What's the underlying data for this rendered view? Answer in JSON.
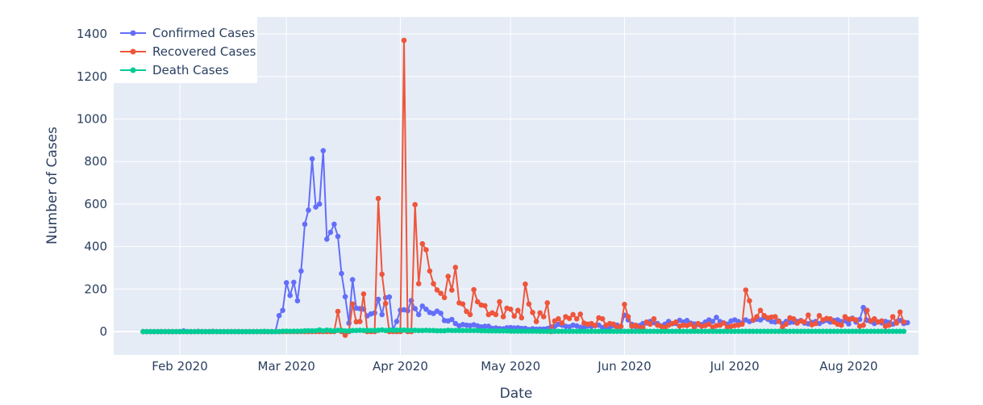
{
  "chart_data": {
    "type": "line",
    "xlabel": "Date",
    "ylabel": "Number of Cases",
    "x_start": "2020-01-22",
    "x_end": "2020-08-05",
    "xlim": [
      "2020-01-14",
      "2020-08-20"
    ],
    "ylim": [
      -110,
      1480
    ],
    "yticks": [
      0,
      200,
      400,
      600,
      800,
      1000,
      1200,
      1400
    ],
    "xticks": [
      {
        "date": "2020-02-01",
        "label": "Feb 2020"
      },
      {
        "date": "2020-03-01",
        "label": "Mar 2020"
      },
      {
        "date": "2020-04-01",
        "label": "Apr 2020"
      },
      {
        "date": "2020-05-01",
        "label": "May 2020"
      },
      {
        "date": "2020-06-01",
        "label": "Jun 2020"
      },
      {
        "date": "2020-07-01",
        "label": "Jul 2020"
      },
      {
        "date": "2020-08-01",
        "label": "Aug 2020"
      }
    ],
    "grid": true,
    "legend_position": "top-left",
    "series": [
      {
        "name": "Confirmed Cases",
        "color": "#636efa",
        "values": [
          0,
          0,
          0,
          0,
          0,
          0,
          0,
          0,
          0,
          0,
          0,
          3,
          0,
          0,
          0,
          1,
          0,
          0,
          0,
          1,
          0,
          0,
          0,
          0,
          0,
          0,
          0,
          0,
          0,
          0,
          0,
          0,
          0,
          0,
          0,
          0,
          0,
          75,
          100,
          230,
          170,
          232,
          145,
          285,
          505,
          571,
          813,
          586,
          600,
          851,
          435,
          467,
          505,
          448,
          273,
          164,
          40,
          244,
          110,
          108,
          106,
          74,
          83,
          88,
          152,
          80,
          159,
          163,
          8,
          48,
          101,
          103,
          98,
          146,
          108,
          80,
          120,
          105,
          90,
          85,
          96,
          86,
          52,
          50,
          57,
          38,
          27,
          33,
          30,
          28,
          32,
          27,
          22,
          25,
          25,
          15,
          17,
          14,
          13,
          18,
          19,
          17,
          18,
          15,
          15,
          10,
          13,
          11,
          12,
          12,
          14,
          22,
          24,
          34,
          30,
          25,
          22,
          30,
          27,
          20,
          19,
          27,
          24,
          28,
          30,
          19,
          18,
          20,
          28,
          30,
          23,
          77,
          55,
          34,
          24,
          28,
          38,
          40,
          48,
          42,
          38,
          27,
          35,
          48,
          37,
          38,
          53,
          45,
          52,
          40,
          36,
          33,
          33,
          45,
          55,
          48,
          67,
          47,
          41,
          35,
          50,
          55,
          47,
          40,
          55,
          47,
          53,
          58,
          55,
          66,
          58,
          47,
          45,
          50,
          37,
          48,
          43,
          45,
          48,
          52,
          40,
          37,
          43,
          47,
          38,
          48,
          53,
          45,
          52,
          55,
          47,
          50,
          36,
          63,
          45,
          57,
          113,
          53,
          47,
          38,
          46,
          41,
          48,
          43,
          35,
          47,
          52,
          38,
          42
        ]
      },
      {
        "name": "Recovered Cases",
        "color": "#ef553b",
        "values": [
          0,
          0,
          0,
          0,
          0,
          0,
          0,
          0,
          0,
          0,
          0,
          0,
          0,
          0,
          0,
          0,
          0,
          0,
          0,
          0,
          0,
          0,
          0,
          0,
          0,
          0,
          0,
          0,
          0,
          0,
          0,
          0,
          0,
          0,
          0,
          0,
          0,
          0,
          0,
          0,
          0,
          0,
          0,
          0,
          0,
          0,
          0,
          0,
          0,
          0,
          0,
          0,
          0,
          95,
          0,
          -17,
          0,
          130,
          46,
          47,
          177,
          0,
          0,
          0,
          626,
          270,
          132,
          0,
          0,
          0,
          0,
          1370,
          0,
          0,
          597,
          225,
          413,
          385,
          285,
          225,
          196,
          180,
          160,
          260,
          195,
          302,
          135,
          130,
          95,
          80,
          197,
          140,
          125,
          122,
          80,
          88,
          80,
          140,
          70,
          110,
          105,
          73,
          100,
          65,
          223,
          130,
          90,
          47,
          88,
          70,
          135,
          0,
          50,
          60,
          40,
          70,
          62,
          80,
          60,
          82,
          40,
          35,
          38,
          28,
          65,
          60,
          30,
          38,
          35,
          20,
          25,
          128,
          70,
          25,
          30,
          20,
          18,
          45,
          35,
          60,
          30,
          25,
          18,
          30,
          38,
          45,
          25,
          30,
          28,
          35,
          20,
          38,
          25,
          28,
          35,
          20,
          28,
          30,
          40,
          20,
          25,
          28,
          30,
          35,
          195,
          145,
          55,
          70,
          100,
          75,
          65,
          68,
          70,
          48,
          20,
          35,
          65,
          60,
          40,
          50,
          45,
          78,
          32,
          38,
          75,
          55,
          62,
          60,
          45,
          35,
          30,
          70,
          58,
          60,
          55,
          25,
          30,
          100,
          50,
          60,
          45,
          50,
          25,
          30,
          70,
          40,
          92,
          45
        ]
      },
      {
        "name": "Death Cases",
        "color": "#00cc96",
        "values": [
          0,
          0,
          0,
          0,
          0,
          0,
          0,
          0,
          0,
          0,
          0,
          0,
          0,
          0,
          0,
          0,
          0,
          0,
          0,
          0,
          0,
          0,
          0,
          0,
          0,
          0,
          0,
          0,
          0,
          0,
          0,
          0,
          0,
          1,
          0,
          0,
          0,
          0,
          2,
          2,
          1,
          2,
          2,
          2,
          4,
          4,
          4,
          4,
          8,
          3,
          7,
          5,
          3,
          6,
          6,
          3,
          3,
          5,
          5,
          6,
          5,
          6,
          5,
          6,
          6,
          8,
          5,
          8,
          6,
          7,
          7,
          7,
          6,
          6,
          6,
          5,
          5,
          6,
          5,
          5,
          4,
          4,
          4,
          6,
          5,
          5,
          5,
          5,
          5,
          5,
          5,
          5,
          4,
          4,
          3,
          3,
          3,
          3,
          3,
          3,
          2,
          2,
          2,
          2,
          2,
          2,
          2,
          2,
          1,
          1,
          1,
          1,
          1,
          1,
          1,
          1,
          1,
          1,
          1,
          1,
          1,
          1,
          1,
          1,
          1,
          1,
          1,
          1,
          1,
          1,
          1,
          1,
          1,
          1,
          1,
          1,
          1,
          1,
          1,
          1,
          1,
          1,
          1,
          1,
          1,
          1,
          1,
          1,
          1,
          1,
          1,
          1,
          1,
          1,
          1,
          1,
          1,
          1,
          1,
          1,
          1,
          1,
          1,
          1,
          1,
          1,
          1,
          1,
          1,
          1,
          1,
          1,
          1,
          1,
          1,
          1,
          1,
          1,
          1,
          1,
          1,
          1,
          1,
          1,
          1,
          1,
          1,
          1,
          1,
          1,
          1,
          1,
          1,
          1,
          1,
          1,
          1,
          1,
          1,
          1,
          1,
          1,
          1,
          1,
          1,
          1,
          1,
          1
        ]
      }
    ]
  }
}
